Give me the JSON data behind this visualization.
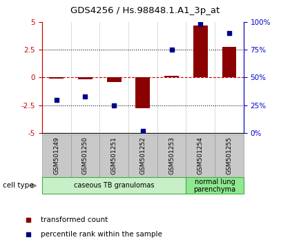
{
  "title": "GDS4256 / Hs.98848.1.A1_3p_at",
  "samples": [
    "GSM501249",
    "GSM501250",
    "GSM501251",
    "GSM501252",
    "GSM501253",
    "GSM501254",
    "GSM501255"
  ],
  "transformed_count": [
    -0.08,
    -0.15,
    -0.4,
    -2.8,
    0.15,
    4.65,
    2.75
  ],
  "percentile_rank": [
    30,
    33,
    25,
    2,
    75,
    98,
    90
  ],
  "ylim_left": [
    -5,
    5
  ],
  "ylim_right": [
    0,
    100
  ],
  "yticks_left": [
    -5,
    -2.5,
    0,
    2.5,
    5
  ],
  "ytick_labels_left": [
    "-5",
    "-2.5",
    "0",
    "2.5",
    "5"
  ],
  "yticks_right": [
    0,
    25,
    50,
    75,
    100
  ],
  "ytick_labels_right": [
    "0%",
    "25%",
    "50%",
    "75%",
    "100%"
  ],
  "bar_color": "#8B0000",
  "square_color": "#00008B",
  "bar_width": 0.5,
  "cell_type_groups": [
    {
      "label": "caseous TB granulomas",
      "indices": [
        0,
        1,
        2,
        3,
        4
      ],
      "color": "#c8f0c8"
    },
    {
      "label": "normal lung\nparenchyma",
      "indices": [
        5,
        6
      ],
      "color": "#90e890"
    }
  ],
  "cell_type_label": "cell type",
  "legend_red": "transformed count",
  "legend_blue": "percentile rank within the sample",
  "bg_color": "#ffffff",
  "tick_color_left": "#cc0000",
  "tick_color_right": "#0000cc",
  "dashed_zero_color": "#cc0000",
  "sample_box_color": "#c8c8c8",
  "separator_color": "#aaaaaa"
}
